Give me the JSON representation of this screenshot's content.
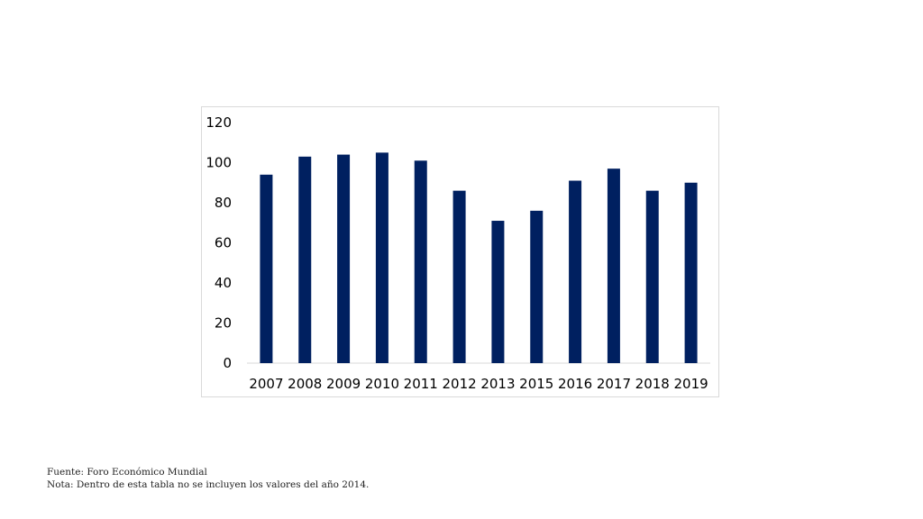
{
  "chart_data": {
    "type": "bar",
    "categories": [
      "2007",
      "2008",
      "2009",
      "2010",
      "2011",
      "2012",
      "2013",
      "2015",
      "2016",
      "2017",
      "2018",
      "2019"
    ],
    "values": [
      94,
      103,
      104,
      105,
      101,
      86,
      71,
      76,
      91,
      97,
      86,
      90
    ],
    "title": "",
    "xlabel": "",
    "ylabel": "",
    "ylim": [
      0,
      120
    ],
    "yticks": [
      0,
      20,
      40,
      60,
      80,
      100,
      120
    ],
    "grid": false,
    "bar_color": "#002060"
  },
  "notes": {
    "source": "Fuente: Foro Económico Mundial",
    "note": "Nota: Dentro de esta tabla no se incluyen los valores del año 2014."
  }
}
